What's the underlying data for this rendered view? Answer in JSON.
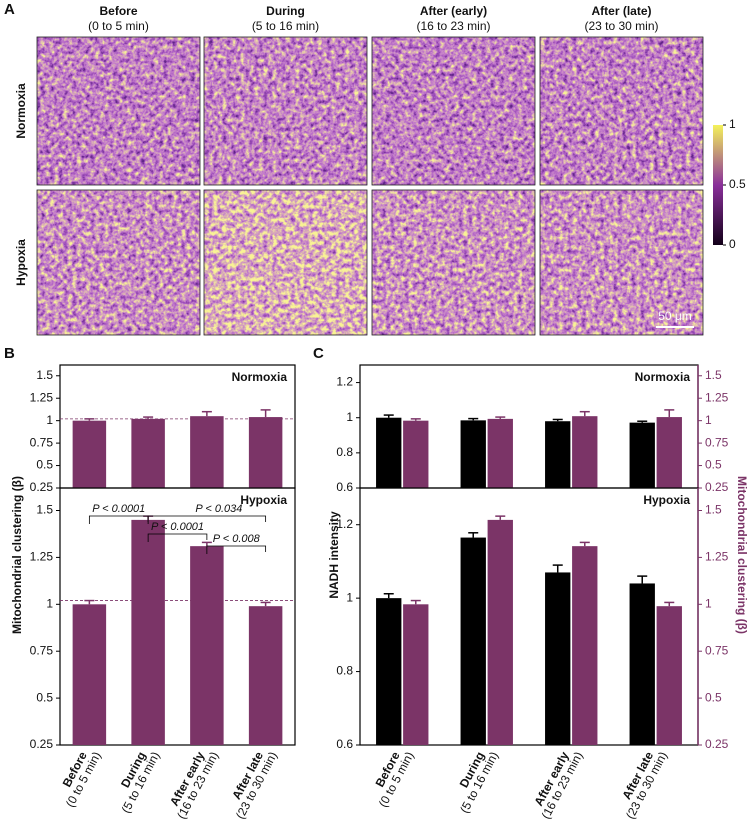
{
  "panel_labels": [
    "A",
    "B",
    "C"
  ],
  "panel_a": {
    "columns": [
      {
        "title": "Before",
        "subtitle": "(0 to 5 min)"
      },
      {
        "title": "During",
        "subtitle": "(5 to 16 min)"
      },
      {
        "title": "After (early)",
        "subtitle": "(16 to 23 min)"
      },
      {
        "title": "After (late)",
        "subtitle": "(23 to 30 min)"
      }
    ],
    "rows": [
      "Normoxia",
      "Hypoxia"
    ],
    "colorbar": {
      "lim": [
        0,
        1
      ],
      "ticks": [
        0,
        0.5,
        1
      ]
    },
    "scale_bar": "50 μm"
  },
  "chart_data": [
    {
      "type": "bar",
      "title": "Normoxia",
      "categories": [
        null,
        null,
        null,
        null
      ],
      "values": [
        1.0,
        1.02,
        1.05,
        1.04
      ],
      "errors": [
        0.02,
        0.02,
        0.05,
        0.08
      ],
      "color": "#7b3467",
      "hline": 1.02,
      "ylim": [
        0.25,
        1.62
      ],
      "yticks": [
        0.25,
        0.5,
        0.75,
        1,
        1.25,
        1.5
      ]
    },
    {
      "type": "bar",
      "title": "Hypoxia",
      "ylabel": "Mitochondrial clustering (β)",
      "categories": [
        "Before",
        "During",
        "After early",
        "After late"
      ],
      "category_subtitles": [
        "(0 to 5 min)",
        "(5 to 16 min)",
        "(16 to 23 min)",
        "(23 to 30 min)"
      ],
      "values": [
        1.0,
        1.45,
        1.31,
        0.99
      ],
      "errors": [
        0.02,
        0.02,
        0.02,
        0.02
      ],
      "color": "#7b3467",
      "hline": 1.02,
      "ylim": [
        0.25,
        1.62
      ],
      "yticks": [
        0.25,
        0.5,
        0.75,
        1,
        1.25,
        1.5
      ],
      "annotations": [
        "P < 0.0001",
        "P < 0.034",
        "P < 0.0001",
        "P < 0.008"
      ]
    },
    {
      "type": "grouped_bar",
      "title": "Normoxia",
      "categories": [
        null,
        null,
        null,
        null
      ],
      "series": [
        {
          "color": "#000000",
          "values": [
            1.0,
            0.985,
            0.98,
            0.972
          ],
          "errors": [
            0.015,
            0.01,
            0.01,
            0.008
          ]
        },
        {
          "color": "#7b3467",
          "axis": "y2",
          "values": [
            1.0,
            1.02,
            1.05,
            1.04
          ],
          "errors": [
            0.02,
            0.02,
            0.05,
            0.08
          ]
        }
      ],
      "ylim": [
        0.6,
        1.3
      ],
      "yticks": [
        0.6,
        0.8,
        1,
        1.2
      ],
      "y2lim": [
        0.25,
        1.62
      ],
      "y2ticks": [
        0.25,
        0.5,
        0.75,
        1,
        1.25,
        1.5
      ]
    },
    {
      "type": "grouped_bar",
      "title": "Hypoxia",
      "ylabel": "NADH intensity",
      "y2label": "Mitochondrial clustering (β)",
      "categories": [
        "Before",
        "During",
        "After early",
        "After late"
      ],
      "category_subtitles": [
        "(0 to 5 min)",
        "(5 to 16 min)",
        "(16 to 23 min)",
        "(23 to 30 min)"
      ],
      "series": [
        {
          "color": "#000000",
          "values": [
            1.0,
            1.165,
            1.07,
            1.04
          ],
          "errors": [
            0.012,
            0.013,
            0.02,
            0.02
          ]
        },
        {
          "color": "#7b3467",
          "axis": "y2",
          "values": [
            1.0,
            1.45,
            1.31,
            0.99
          ],
          "errors": [
            0.02,
            0.02,
            0.02,
            0.02
          ]
        }
      ],
      "ylim": [
        0.6,
        1.3
      ],
      "yticks": [
        0.6,
        0.8,
        1,
        1.2
      ],
      "y2lim": [
        0.25,
        1.62
      ],
      "y2ticks": [
        0.25,
        0.5,
        0.75,
        1,
        1.25,
        1.5
      ]
    }
  ]
}
